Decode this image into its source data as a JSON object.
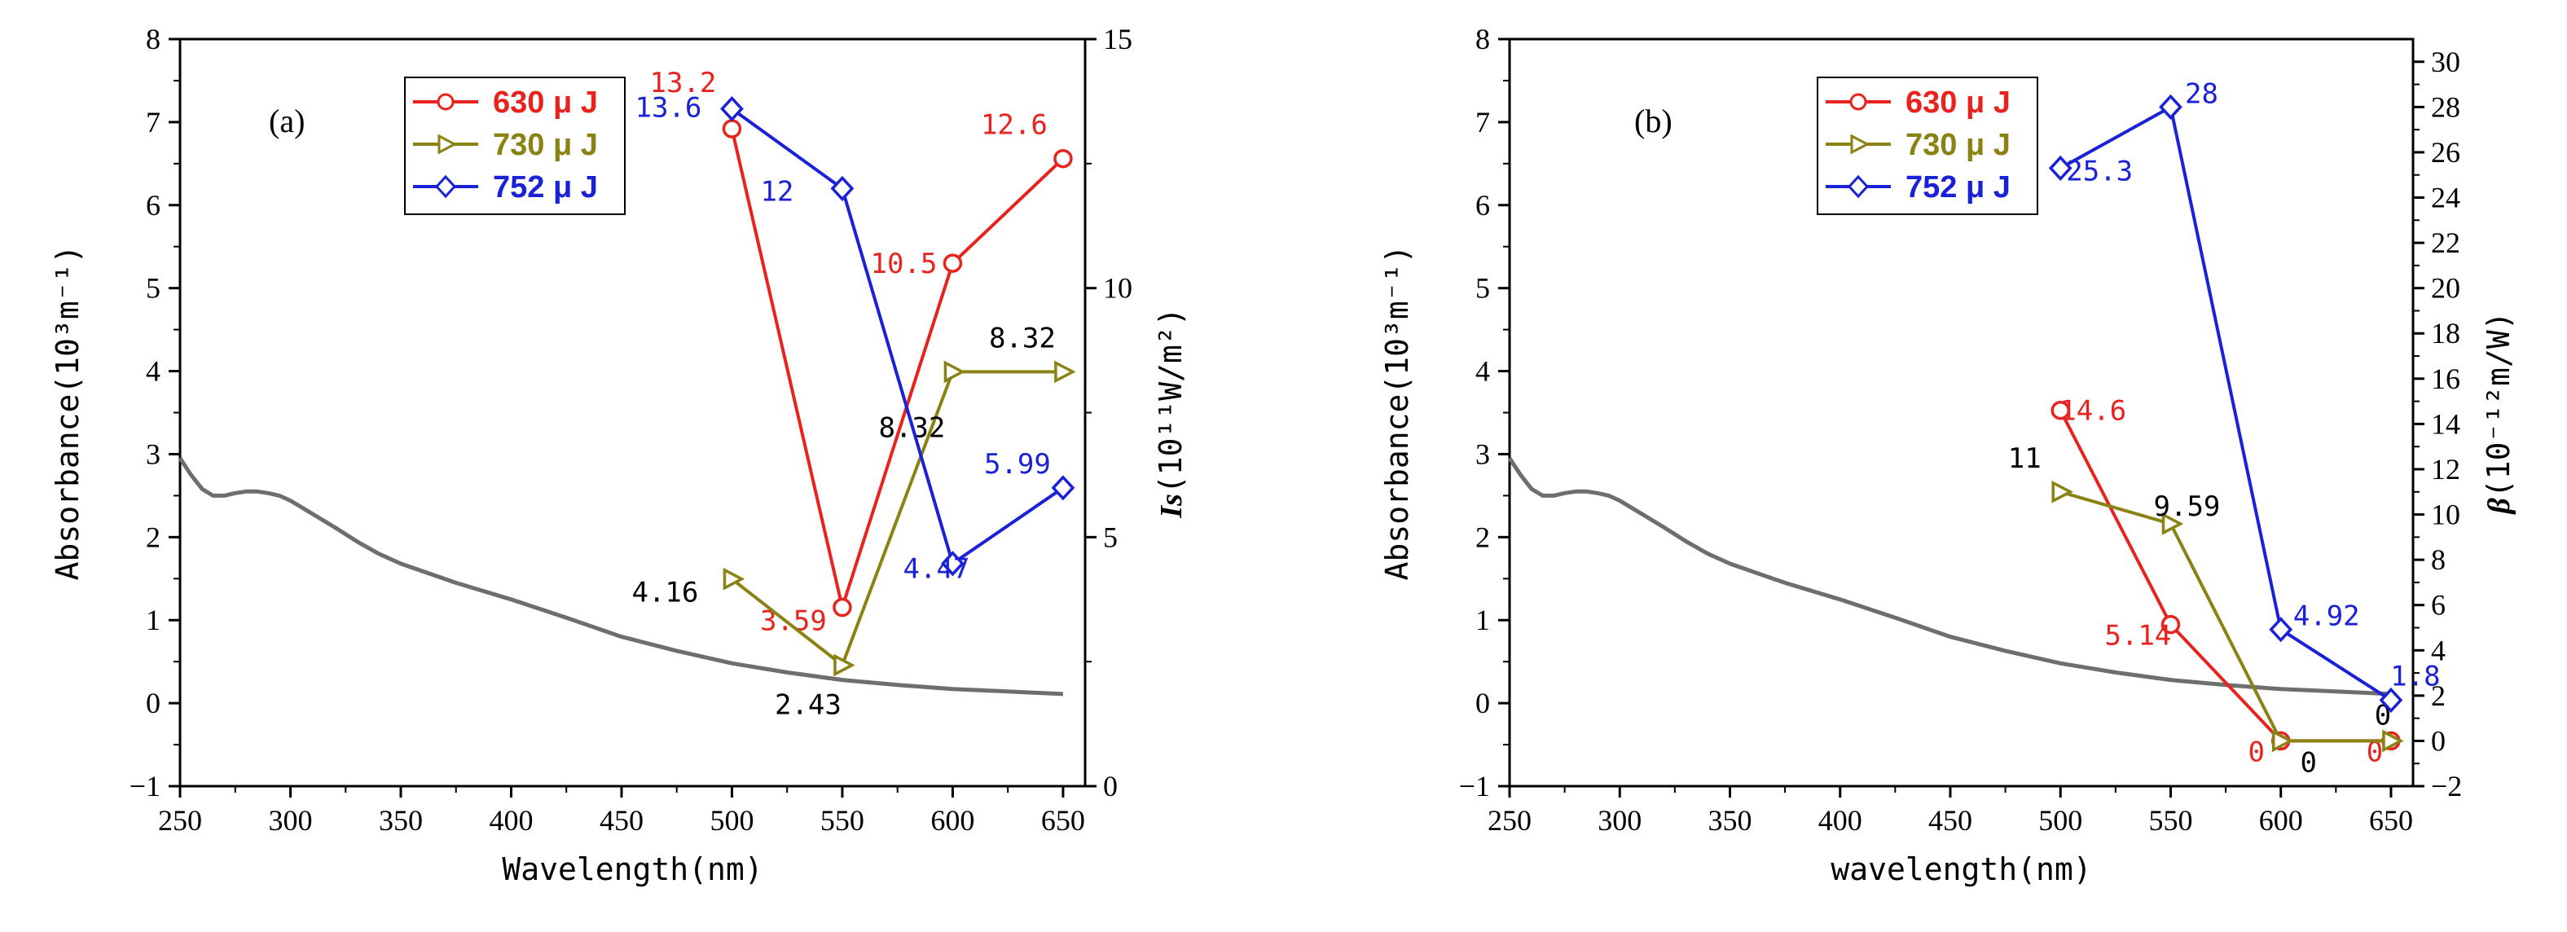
{
  "colors": {
    "630uJ": "#e8231e",
    "730uJ": "#8a8212",
    "752uJ": "#1a21d6",
    "absorbance": "#6e6e6e"
  },
  "chart_data": [
    {
      "panel": "(a)",
      "type": "line",
      "xlabel": "Wavelength(nm)",
      "ylabel_left": "Absorbance(10³m⁻¹)",
      "ylabel_right_text": "(10¹¹W/m²)",
      "ylabel_right_symbol": "Is",
      "xlim": [
        250,
        660
      ],
      "ylim_left": [
        -1,
        8
      ],
      "ylim_right": [
        0,
        15
      ],
      "x_ticks": [
        "250",
        "300",
        "350",
        "400",
        "450",
        "500",
        "550",
        "600",
        "650"
      ],
      "y_ticks_left": [
        "-1",
        "0",
        "1",
        "2",
        "3",
        "4",
        "5",
        "6",
        "7",
        "8"
      ],
      "y_ticks_right": [
        "0",
        "5",
        "10",
        "15"
      ],
      "legend": [
        "630 μ J",
        "730 μ J",
        "752 μ J"
      ],
      "legend_position": "top-center",
      "absorbance_curve": {
        "x": [
          250,
          255,
          260,
          265,
          270,
          275,
          280,
          285,
          290,
          295,
          300,
          310,
          320,
          330,
          340,
          350,
          375,
          400,
          425,
          450,
          475,
          500,
          525,
          550,
          575,
          600,
          625,
          650
        ],
        "y": [
          2.95,
          2.75,
          2.58,
          2.5,
          2.5,
          2.53,
          2.55,
          2.55,
          2.53,
          2.5,
          2.44,
          2.28,
          2.12,
          1.95,
          1.8,
          1.68,
          1.45,
          1.25,
          1.03,
          0.8,
          0.63,
          0.48,
          0.37,
          0.28,
          0.22,
          0.17,
          0.14,
          0.11
        ]
      },
      "series": [
        {
          "name": "630 μ J",
          "marker": "circle",
          "x": [
            500,
            550,
            600,
            650
          ],
          "y": [
            13.2,
            3.59,
            10.5,
            12.6
          ],
          "labels": [
            "13.2",
            "3.59",
            "10.5",
            "12.6"
          ]
        },
        {
          "name": "730 μ J",
          "marker": "triangle-right",
          "x": [
            500,
            550,
            600,
            650
          ],
          "y": [
            4.16,
            2.43,
            8.32,
            8.32
          ],
          "labels": [
            "4.16",
            "2.43",
            "8.32",
            "8.32"
          ]
        },
        {
          "name": "752 μ J",
          "marker": "diamond",
          "x": [
            500,
            550,
            600,
            650
          ],
          "y": [
            13.6,
            12,
            4.47,
            5.99
          ],
          "labels": [
            "13.6",
            "12",
            "4.47",
            "5.99"
          ]
        }
      ]
    },
    {
      "panel": "(b)",
      "type": "line",
      "xlabel": "wavelength(nm)",
      "ylabel_left": "Absorbance(10³m⁻¹)",
      "ylabel_right_text": "(10⁻¹²m/W)",
      "ylabel_right_symbol": "β",
      "xlim": [
        250,
        660
      ],
      "ylim_left": [
        -1,
        8
      ],
      "ylim_right": [
        -2,
        31
      ],
      "x_ticks": [
        "250",
        "300",
        "350",
        "400",
        "450",
        "500",
        "550",
        "600",
        "650"
      ],
      "y_ticks_left": [
        "-1",
        "0",
        "1",
        "2",
        "3",
        "4",
        "5",
        "6",
        "7",
        "8"
      ],
      "y_ticks_right": [
        "-2",
        "0",
        "2",
        "4",
        "6",
        "8",
        "10",
        "12",
        "14",
        "16",
        "18",
        "20",
        "22",
        "24",
        "26",
        "28",
        "30"
      ],
      "legend": [
        "630 μ J",
        "730 μ J",
        "752 μ J"
      ],
      "legend_position": "top-center",
      "absorbance_curve": {
        "x": [
          250,
          255,
          260,
          265,
          270,
          275,
          280,
          285,
          290,
          295,
          300,
          310,
          320,
          330,
          340,
          350,
          375,
          400,
          425,
          450,
          475,
          500,
          525,
          550,
          575,
          600,
          625,
          650
        ],
        "y": [
          2.95,
          2.75,
          2.58,
          2.5,
          2.5,
          2.53,
          2.55,
          2.55,
          2.53,
          2.5,
          2.44,
          2.28,
          2.12,
          1.95,
          1.8,
          1.68,
          1.45,
          1.25,
          1.03,
          0.8,
          0.63,
          0.48,
          0.37,
          0.28,
          0.22,
          0.17,
          0.14,
          0.11
        ]
      },
      "series": [
        {
          "name": "630 μ J",
          "marker": "circle",
          "x": [
            500,
            550,
            600,
            650
          ],
          "y": [
            14.6,
            5.14,
            0,
            0
          ],
          "labels": [
            "14.6",
            "5.14",
            "0",
            "0"
          ]
        },
        {
          "name": "730 μ J",
          "marker": "triangle-right",
          "x": [
            500,
            550,
            600,
            650
          ],
          "y": [
            11,
            9.59,
            0,
            0
          ],
          "labels": [
            "11",
            "9.59",
            "0",
            "0"
          ]
        },
        {
          "name": "752 μ J",
          "marker": "diamond",
          "x": [
            500,
            550,
            600,
            650
          ],
          "y": [
            25.3,
            28,
            4.92,
            1.8
          ],
          "labels": [
            "25.3",
            "28",
            "4.92",
            "1.8"
          ]
        }
      ]
    }
  ]
}
